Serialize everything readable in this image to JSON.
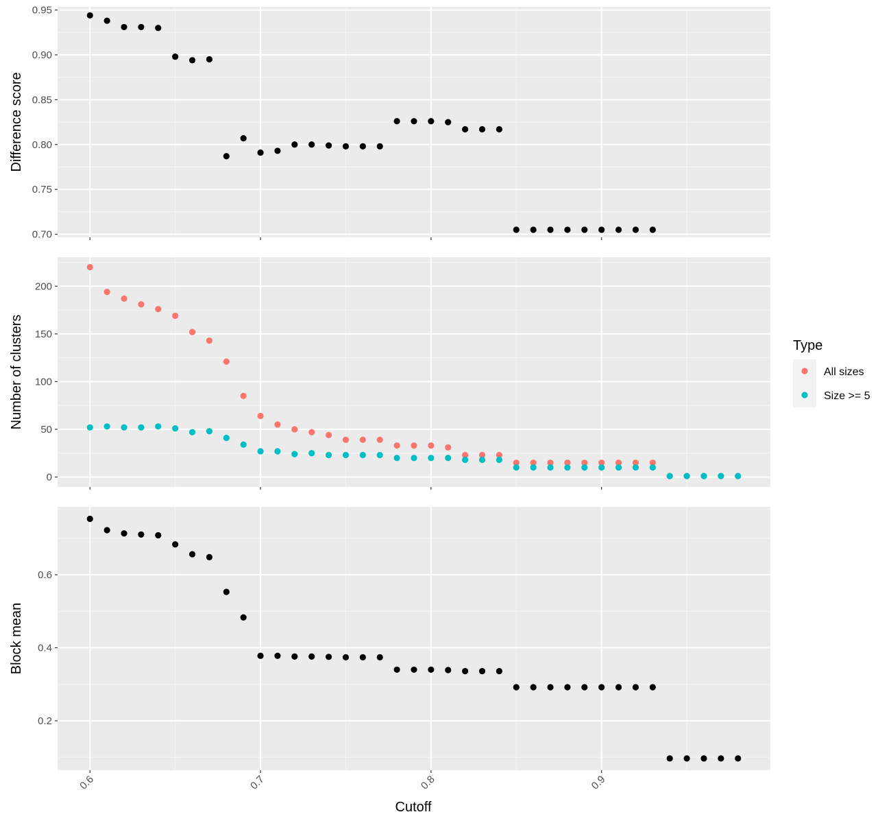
{
  "chart_data": {
    "type": "scatter",
    "xlabel": "Cutoff",
    "xlim": [
      0.581,
      0.999
    ],
    "xticks": [
      0.6,
      0.7,
      0.8,
      0.9
    ],
    "xtick_labels": [
      "0.6",
      "0.7",
      "0.8",
      "0.9"
    ],
    "x": [
      0.6,
      0.61,
      0.62,
      0.63,
      0.64,
      0.65,
      0.66,
      0.67,
      0.68,
      0.69,
      0.7,
      0.71,
      0.72,
      0.73,
      0.74,
      0.75,
      0.76,
      0.77,
      0.78,
      0.79,
      0.8,
      0.81,
      0.82,
      0.83,
      0.84,
      0.85,
      0.86,
      0.87,
      0.88,
      0.89,
      0.9,
      0.91,
      0.92,
      0.93,
      0.94,
      0.95,
      0.96,
      0.97,
      0.98
    ],
    "grid": true,
    "background": "#ebebeb",
    "legend": {
      "title": "Type",
      "placement": "right",
      "entries": [
        {
          "label": "All sizes",
          "color": "#f8766d"
        },
        {
          "label": "Size >= 5",
          "color": "#00bfc4"
        }
      ]
    },
    "panels": [
      {
        "ylabel": "Difference score",
        "ylim": [
          0.6966,
          0.9535
        ],
        "yticks": [
          0.7,
          0.75,
          0.8,
          0.85,
          0.9,
          0.95
        ],
        "ytick_labels": [
          "0.70",
          "0.75",
          "0.80",
          "0.85",
          "0.90",
          "0.95"
        ],
        "series": [
          {
            "color": "#000000",
            "values": [
              0.944,
              0.938,
              0.931,
              0.931,
              0.93,
              0.898,
              0.894,
              0.895,
              0.787,
              0.807,
              0.791,
              0.793,
              0.8,
              0.8,
              0.799,
              0.798,
              0.798,
              0.798,
              0.826,
              0.826,
              0.826,
              0.825,
              0.817,
              0.817,
              0.817,
              0.705,
              0.705,
              0.705,
              0.705,
              0.705,
              0.705,
              0.705,
              0.705,
              0.705,
              null,
              null,
              null,
              null,
              null
            ]
          }
        ]
      },
      {
        "ylabel": "Number of clusters",
        "ylim": [
          -10.4,
          230.4
        ],
        "yticks": [
          0,
          50,
          100,
          150,
          200
        ],
        "ytick_labels": [
          "0",
          "50",
          "100",
          "150",
          "200"
        ],
        "series": [
          {
            "name": "All sizes",
            "color": "#f8766d",
            "values": [
              220,
              194,
              187,
              181,
              176,
              169,
              152,
              143,
              121,
              85,
              64,
              55,
              50,
              47,
              44,
              39,
              39,
              39,
              33,
              33,
              33,
              31,
              23,
              23,
              23,
              15,
              15,
              15,
              15,
              15,
              15,
              15,
              15,
              15,
              1,
              1,
              1,
              1,
              1
            ]
          },
          {
            "name": "Size >= 5",
            "color": "#00bfc4",
            "values": [
              52,
              53,
              52,
              52,
              53,
              51,
              47,
              48,
              41,
              34,
              27,
              27,
              24,
              25,
              23,
              23,
              23,
              23,
              20,
              20,
              20,
              20,
              18,
              18,
              18,
              10,
              10,
              10,
              10,
              10,
              10,
              10,
              10,
              10,
              1,
              1,
              1,
              1,
              1
            ]
          }
        ]
      },
      {
        "ylabel": "Block mean",
        "ylim": [
          0.0648,
          0.7858
        ],
        "yticks": [
          0.2,
          0.4,
          0.6
        ],
        "ytick_labels": [
          "0.2",
          "0.4",
          "0.6"
        ],
        "series": [
          {
            "color": "#000000",
            "values": [
              0.753,
              0.722,
              0.713,
              0.71,
              0.708,
              0.683,
              0.656,
              0.648,
              0.553,
              0.483,
              0.378,
              0.378,
              0.376,
              0.376,
              0.375,
              0.374,
              0.374,
              0.374,
              0.34,
              0.34,
              0.34,
              0.339,
              0.336,
              0.336,
              0.336,
              0.292,
              0.292,
              0.292,
              0.292,
              0.292,
              0.292,
              0.292,
              0.292,
              0.292,
              0.097,
              0.097,
              0.097,
              0.097,
              0.097
            ]
          }
        ]
      }
    ]
  }
}
